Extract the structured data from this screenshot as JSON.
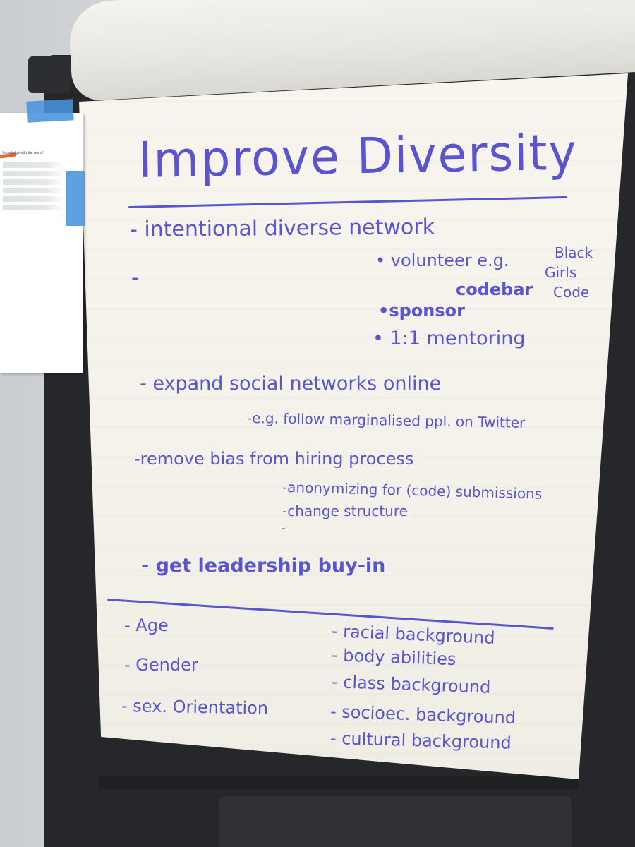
{
  "side_note": {
    "text": "knowledge with the world!"
  },
  "flipchart": {
    "title": "Improve Diversity",
    "items": [
      "- intentional diverse network",
      "• volunteer e.g.",
      "Black",
      "Girls",
      "Code",
      "codebar",
      "•sponsor",
      "• 1:1 mentoring",
      "- expand social networks online",
      "-e.g. follow marginalised ppl. on Twitter",
      "-remove bias from hiring process",
      "-anonymizing for (code) submissions",
      "-change structure",
      "- get leadership buy-in"
    ],
    "left_column": [
      "- Age",
      "- Gender",
      "- sex. Orientation"
    ],
    "right_column": [
      "- racial background",
      "- body abilities",
      "- class background",
      "- socioec. background",
      "- cultural background"
    ],
    "dashes": [
      "-",
      "-"
    ]
  },
  "colors": {
    "ink": "#5a55cf",
    "tape": "#4893dd",
    "paper": "#f5f3ec",
    "easel": "#26272a"
  }
}
